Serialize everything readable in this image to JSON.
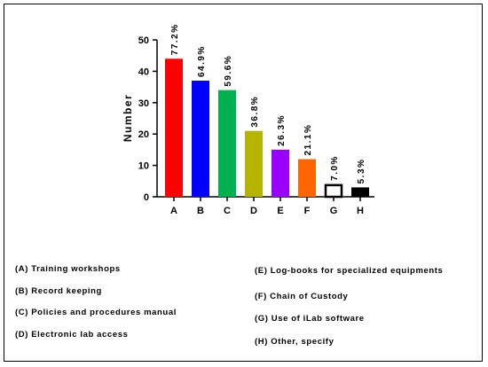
{
  "chart_data": {
    "type": "bar",
    "categories": [
      "A",
      "B",
      "C",
      "D",
      "E",
      "F",
      "G",
      "H"
    ],
    "values": [
      44,
      37,
      34,
      21,
      15,
      12,
      4,
      3
    ],
    "data_labels": [
      "77.2%",
      "64.9%",
      "59.6%",
      "36.8%",
      "26.3%",
      "21.1%",
      "7.0%",
      "5.3%"
    ],
    "colors": [
      "#ff0000",
      "#0000ff",
      "#00b050",
      "#b5b500",
      "#9900ff",
      "#ff6600",
      "#ffffff",
      "#000000"
    ],
    "ylabel": "Number",
    "xlabel": "",
    "ylim": [
      0,
      50
    ],
    "yticks": [
      0,
      10,
      20,
      30,
      40,
      50
    ],
    "grid": false
  },
  "legend": {
    "left": [
      "(A) Training workshops",
      "(B) Record keeping",
      "(C) Policies and procedures manual",
      "(D) Electronic lab access"
    ],
    "right": [
      "(E) Log-books for specialized equipments",
      "(F) Chain of Custody",
      "(G) Use of iLab software",
      "(H) Other, specify"
    ]
  }
}
